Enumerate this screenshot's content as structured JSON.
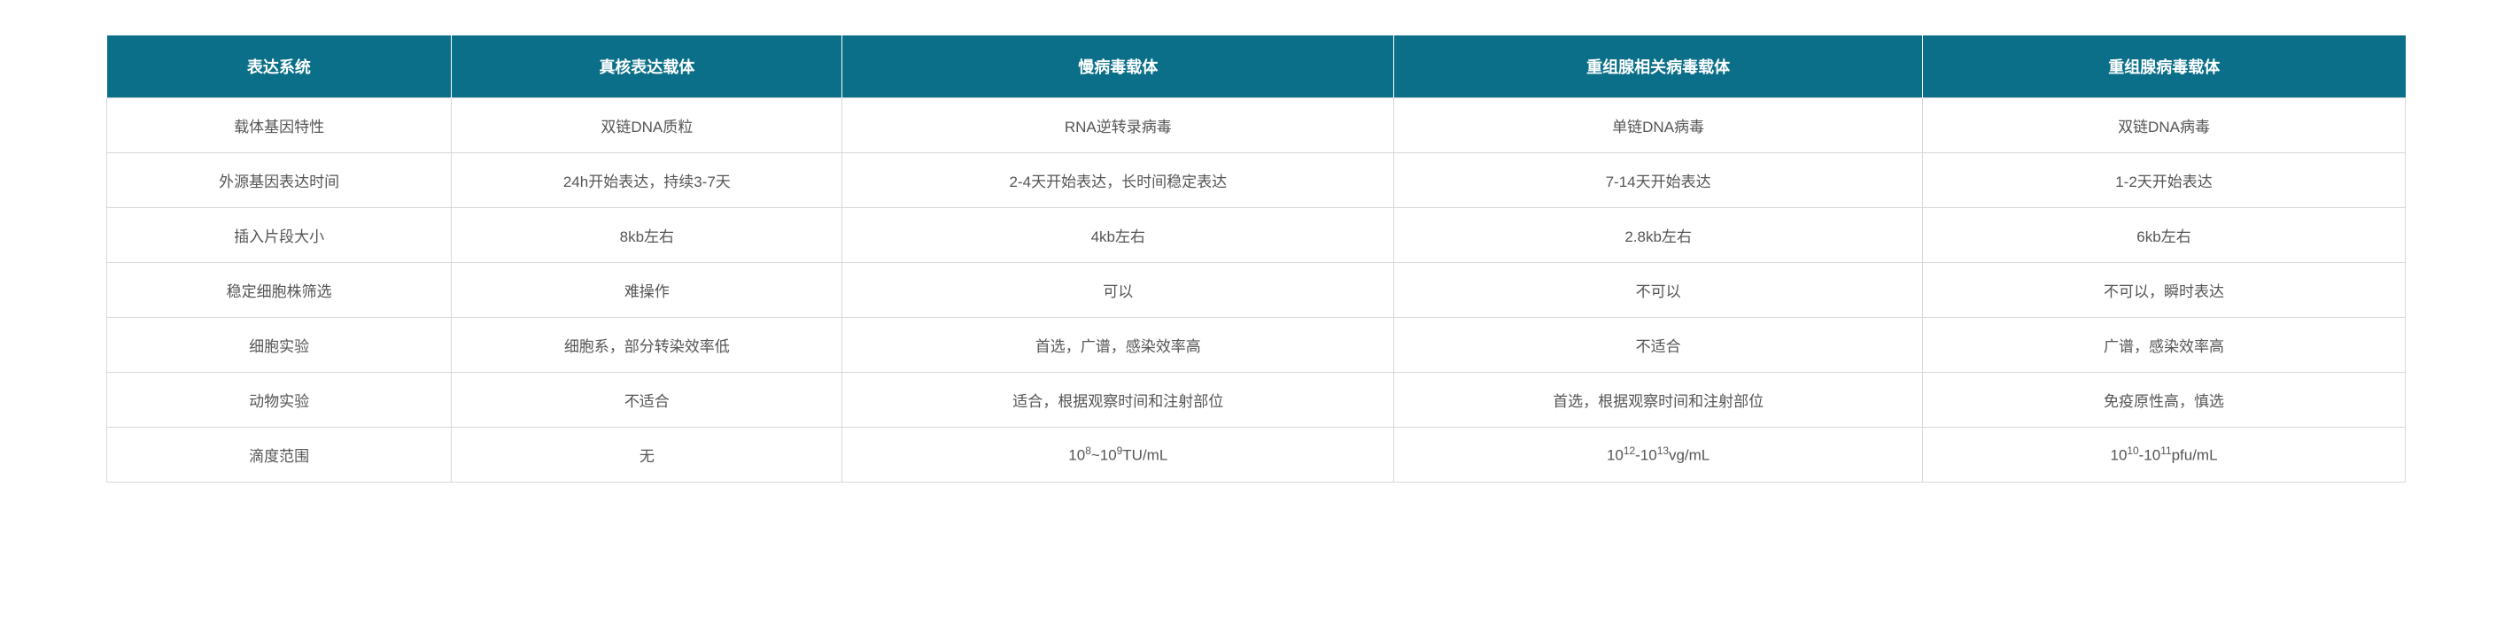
{
  "table": {
    "header_bg_color": "#0b6f89",
    "header_text_color": "#ffffff",
    "cell_text_color": "#555555",
    "border_color": "#d8d8d8",
    "header_fontsize": 18,
    "cell_fontsize": 17,
    "columns": [
      "表达系统",
      "真核表达载体",
      "慢病毒载体",
      "重组腺相关病毒载体",
      "重组腺病毒载体"
    ],
    "rows": [
      {
        "label": "载体基因特性",
        "cells": [
          "双链DNA质粒",
          "RNA逆转录病毒",
          "单链DNA病毒",
          "双链DNA病毒"
        ]
      },
      {
        "label": "外源基因表达时间",
        "cells": [
          "24h开始表达，持续3-7天",
          "2-4天开始表达，长时间稳定表达",
          "7-14天开始表达",
          "1-2天开始表达"
        ]
      },
      {
        "label": "插入片段大小",
        "cells": [
          "8kb左右",
          "4kb左右",
          "2.8kb左右",
          "6kb左右"
        ]
      },
      {
        "label": "稳定细胞株筛选",
        "cells": [
          "难操作",
          "可以",
          "不可以",
          "不可以，瞬时表达"
        ]
      },
      {
        "label": "细胞实验",
        "cells": [
          "细胞系，部分转染效率低",
          "首选，广谱，感染效率高",
          "不适合",
          "广谱，感染效率高"
        ]
      },
      {
        "label": "动物实验",
        "cells": [
          "不适合",
          "适合，根据观察时间和注射部位",
          "首选，根据观察时间和注射部位",
          "免疫原性高，慎选"
        ]
      },
      {
        "label": "滴度范围",
        "cells": [
          "无",
          "10^8~10^9TU/mL",
          "10^12-10^13vg/mL",
          "10^10-10^11pfu/mL"
        ],
        "html_cells": [
          "无",
          "10<sup>8</sup>~10<sup>9</sup>TU/mL",
          "10<sup>12</sup>-10<sup>13</sup>vg/mL",
          "10<sup>10</sup>-10<sup>11</sup>pfu/mL"
        ]
      }
    ]
  }
}
